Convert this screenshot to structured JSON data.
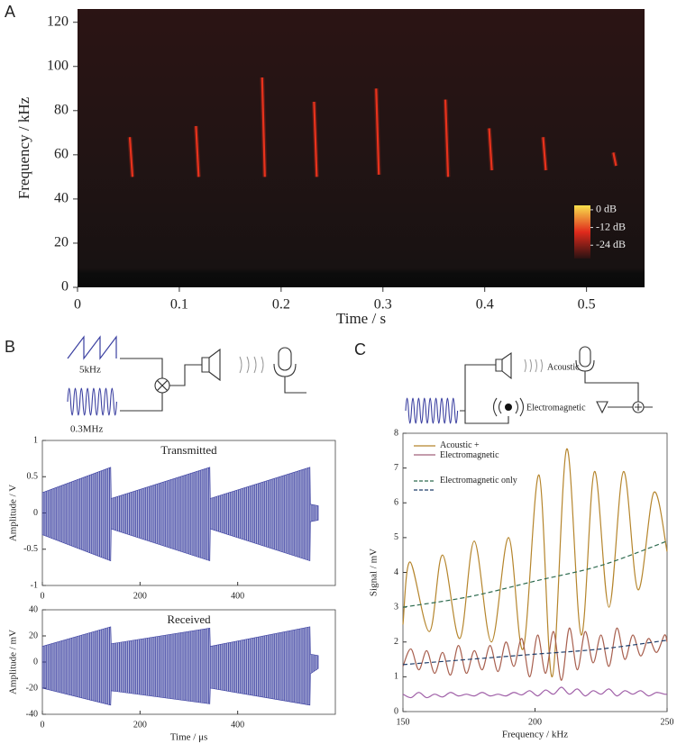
{
  "panels": [
    "A",
    "B",
    "C"
  ],
  "diagram_b": {
    "sawtooth_label": "5kHz",
    "carrier_label": "0.3MHz"
  },
  "diagram_c": {
    "acoustic_label": "Acoustic",
    "electromagnetic_label": "Electromagnetic"
  },
  "chart_data": [
    {
      "type": "spectrogram",
      "xlabel": "Time / s",
      "ylabel": "Frequency / kHz",
      "xlim": [
        0,
        0.557
      ],
      "xticks": [
        0,
        0.1,
        0.2,
        0.3,
        0.4,
        0.5
      ],
      "ylim": [
        0,
        126
      ],
      "yticks": [
        0,
        20,
        40,
        60,
        80,
        100,
        120
      ],
      "x": [
        0.054,
        0.119,
        0.184,
        0.235,
        0.296,
        0.364,
        0.407,
        0.46,
        0.529
      ],
      "low": [
        50,
        50,
        50,
        50,
        51,
        50,
        53,
        53,
        55
      ],
      "high": [
        68,
        73,
        95,
        84,
        90,
        85,
        72,
        68,
        61
      ],
      "color": "#e8321c",
      "colorbar": {
        "colors": [
          "#f8e04c",
          "#e02a1c",
          "#2a1212"
        ],
        "lim": [
          -33,
          3
        ],
        "ticks": [
          {
            "value": 0,
            "label": "0 dB"
          },
          {
            "value": -12,
            "label": "-12 dB"
          },
          {
            "value": -24,
            "label": "-24 dB"
          }
        ]
      }
    },
    {
      "type": "band",
      "title": "Transmitted",
      "ylabel": "Amplitude / V",
      "xlim": [
        0,
        600
      ],
      "xticks": [
        0,
        200,
        400
      ],
      "ylim": [
        -1,
        1
      ],
      "yticks": [
        -1,
        -0.5,
        0,
        0.5,
        1
      ],
      "x": [
        0,
        140,
        141,
        343,
        344,
        548,
        549,
        565
      ],
      "series": [
        {
          "color": "#3a3fa0",
          "upper": [
            0.28,
            0.63,
            0.2,
            0.63,
            0.2,
            0.63,
            0.12,
            0.1
          ],
          "lower": [
            -0.3,
            -0.66,
            -0.22,
            -0.66,
            -0.22,
            -0.66,
            -0.12,
            -0.1
          ]
        }
      ]
    },
    {
      "type": "band",
      "title": "Received",
      "ylabel": "Amplitude / mV",
      "xlabel": "Time / μs",
      "xlim": [
        0,
        600
      ],
      "xticks": [
        0,
        200,
        400
      ],
      "ylim": [
        -40,
        40
      ],
      "yticks": [
        -40,
        -20,
        0,
        20,
        40
      ],
      "x": [
        0,
        140,
        141,
        343,
        344,
        548,
        549,
        565
      ],
      "series": [
        {
          "color": "#3a3fa0",
          "upper": [
            12,
            27,
            14,
            26,
            12,
            27,
            6,
            5
          ],
          "lower": [
            -20,
            -33,
            -22,
            -32,
            -20,
            -33,
            -9,
            -5
          ]
        }
      ]
    },
    {
      "type": "line",
      "xlabel": "Frequency / kHz",
      "ylabel": "Signal / mV",
      "xlim": [
        150,
        250
      ],
      "xticks": [
        150,
        200,
        250
      ],
      "ylim": [
        0,
        8
      ],
      "yticks": [
        0,
        1,
        2,
        3,
        4,
        5,
        6,
        7,
        8
      ],
      "legend": [
        {
          "label": "Acoustic + Electromagnetic",
          "colors": [
            "#b5852c",
            "#a0607a"
          ],
          "dashed": false
        },
        {
          "label": "Electromagnetic only",
          "colors": [
            "#2e6b4f",
            "#1f3f6b"
          ],
          "dashed": true
        }
      ],
      "series": [
        {
          "color": "#b5852c",
          "dashed": false,
          "x": [
            150,
            152.7,
            160,
            165,
            171.5,
            177,
            183.5,
            190,
            195.5,
            201.5,
            206.5,
            212,
            217.5,
            222.5,
            228,
            233.5,
            239,
            245,
            250
          ],
          "values": [
            2.5,
            4.3,
            2.3,
            4.5,
            2.1,
            4.9,
            2.0,
            5.0,
            1.8,
            6.8,
            1.0,
            7.55,
            2.2,
            6.9,
            3.0,
            6.9,
            3.5,
            6.3,
            4.6
          ]
        },
        {
          "color": "#a8604f",
          "dashed": false,
          "x": [
            150,
            153,
            156,
            159,
            162,
            165,
            168,
            171,
            174,
            177,
            180,
            183,
            186,
            189,
            192,
            195,
            198,
            201,
            204,
            207,
            210,
            213,
            216,
            219,
            222,
            225,
            228,
            231,
            234,
            237,
            240,
            243,
            246,
            249,
            250
          ],
          "values": [
            1.3,
            1.8,
            1.2,
            1.75,
            1.1,
            1.7,
            1.05,
            1.9,
            1.1,
            1.75,
            1.2,
            1.9,
            1.15,
            2.0,
            1.3,
            2.1,
            1.0,
            2.2,
            1.1,
            2.3,
            0.9,
            2.4,
            1.2,
            2.3,
            1.4,
            2.2,
            1.3,
            2.4,
            1.5,
            2.2,
            1.6,
            2.1,
            1.7,
            2.2,
            2.0
          ]
        },
        {
          "color": "#a060a8",
          "dashed": false,
          "x": [
            150,
            153,
            156,
            159,
            162,
            165,
            168,
            171,
            174,
            177,
            180,
            183,
            186,
            189,
            192,
            195,
            198,
            201,
            204,
            207,
            210,
            213,
            216,
            219,
            222,
            225,
            228,
            231,
            234,
            237,
            240,
            243,
            246,
            249,
            250
          ],
          "values": [
            0.5,
            0.4,
            0.55,
            0.4,
            0.5,
            0.42,
            0.55,
            0.45,
            0.5,
            0.45,
            0.55,
            0.45,
            0.5,
            0.45,
            0.55,
            0.48,
            0.6,
            0.45,
            0.62,
            0.5,
            0.7,
            0.5,
            0.65,
            0.45,
            0.6,
            0.5,
            0.65,
            0.45,
            0.6,
            0.5,
            0.6,
            0.45,
            0.55,
            0.5,
            0.5
          ]
        },
        {
          "color": "#2e6b4f",
          "dashed": true,
          "x": [
            150,
            175,
            200,
            225,
            250
          ],
          "values": [
            3.0,
            3.3,
            3.75,
            4.2,
            4.9
          ]
        },
        {
          "color": "#1f3f6b",
          "dashed": true,
          "x": [
            150,
            175,
            200,
            225,
            250
          ],
          "values": [
            1.35,
            1.5,
            1.65,
            1.8,
            2.05
          ]
        }
      ]
    }
  ]
}
